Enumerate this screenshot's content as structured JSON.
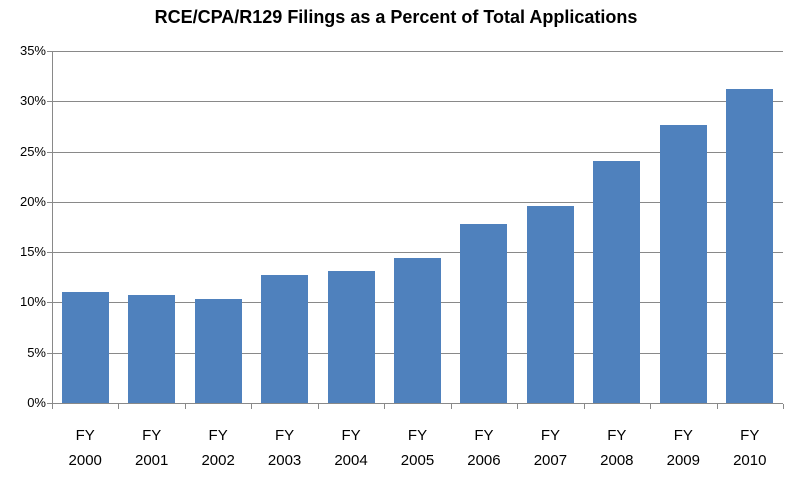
{
  "chart_data": {
    "type": "bar",
    "title": "RCE/CPA/R129 Filings as a Percent of Total Applications",
    "categories": [
      "FY 2000",
      "FY 2001",
      "FY 2002",
      "FY 2003",
      "FY 2004",
      "FY 2005",
      "FY 2006",
      "FY 2007",
      "FY 2008",
      "FY 2009",
      "FY 2010"
    ],
    "values": [
      11.0,
      10.7,
      10.3,
      12.7,
      13.1,
      14.4,
      17.8,
      19.6,
      24.1,
      27.6,
      31.2
    ],
    "xlabel": "",
    "ylabel": "",
    "ylim": [
      0,
      35
    ],
    "ytick_step": 5,
    "ytick_labels": [
      "0%",
      "5%",
      "10%",
      "15%",
      "20%",
      "25%",
      "30%",
      "35%"
    ],
    "grid": true,
    "legend_position": "none",
    "bar_color": "#4F81BD",
    "gridline_color": "#898989",
    "axis_color": "#898989",
    "text_color": "#000000",
    "background_color": "#FFFFFF"
  }
}
